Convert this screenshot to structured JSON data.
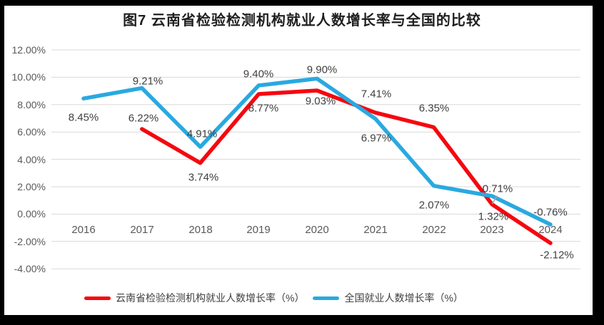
{
  "title": "图7  云南省检验检测机构就业人数增长率与全国的比较",
  "colors": {
    "yunnan_red": "#F5070F",
    "national_blue": "#29A9E0",
    "gridline": "#D9D9D9",
    "leader_line": "#A6A6A6",
    "axis_text": "#595959",
    "data_label_text": "#404040",
    "title_text": "#1F1F1F",
    "background": "#FFFFFF",
    "frame": "#000000"
  },
  "chart_data": {
    "type": "line",
    "title": "图7  云南省检验检测机构就业人数增长率与全国的比较",
    "categories": [
      "2016",
      "2017",
      "2018",
      "2019",
      "2020",
      "2021",
      "2022",
      "2023",
      "2024"
    ],
    "xlabel": "",
    "ylabel": "",
    "ylim": [
      -4,
      12
    ],
    "grid": true,
    "legend_position": "bottom",
    "y_ticks": [
      {
        "value": 12,
        "label": "12.00%"
      },
      {
        "value": 10,
        "label": "10.00%"
      },
      {
        "value": 8,
        "label": "8.00%"
      },
      {
        "value": 6,
        "label": "6.00%"
      },
      {
        "value": 4,
        "label": "4.00%"
      },
      {
        "value": 2,
        "label": "2.00%"
      },
      {
        "value": 0,
        "label": "0.00%"
      },
      {
        "value": -2,
        "label": "-2.00%"
      },
      {
        "value": -4,
        "label": "-4.00%"
      }
    ],
    "series": [
      {
        "id": "yunnan",
        "name": "云南省检验检测机构就业人数增长率（%）",
        "color": "#F5070F",
        "values": [
          null,
          6.22,
          3.74,
          8.77,
          9.03,
          7.41,
          6.35,
          0.71,
          -2.12
        ],
        "labels": [
          "",
          "6.22%",
          "3.74%",
          "8.77%",
          "9.03%",
          "7.41%",
          "6.35%",
          "0.71%",
          "-2.12%"
        ],
        "label_offsets": [
          [
            0,
            0
          ],
          [
            2,
            -15
          ],
          [
            4,
            20
          ],
          [
            7,
            20
          ],
          [
            5,
            15
          ],
          [
            1,
            -26
          ],
          [
            0,
            -26
          ],
          [
            8,
            -22
          ],
          [
            9,
            17
          ]
        ],
        "leader_at": 7
      },
      {
        "id": "national",
        "name": "全国就业人数增长率（%）",
        "color": "#29A9E0",
        "values": [
          8.45,
          9.21,
          4.91,
          9.4,
          9.9,
          6.97,
          2.07,
          1.32,
          -0.76
        ],
        "labels": [
          "8.45%",
          "9.21%",
          "4.91%",
          "9.40%",
          "9.90%",
          "6.97%",
          "2.07%",
          "1.32%",
          "-0.76%"
        ],
        "label_offsets": [
          [
            0,
            27
          ],
          [
            8,
            -10
          ],
          [
            2,
            -18
          ],
          [
            0,
            -16
          ],
          [
            7,
            -12
          ],
          [
            1,
            27
          ],
          [
            0,
            27
          ],
          [
            2,
            29
          ],
          [
            0,
            -17
          ]
        ],
        "leader_at": -1
      }
    ]
  }
}
